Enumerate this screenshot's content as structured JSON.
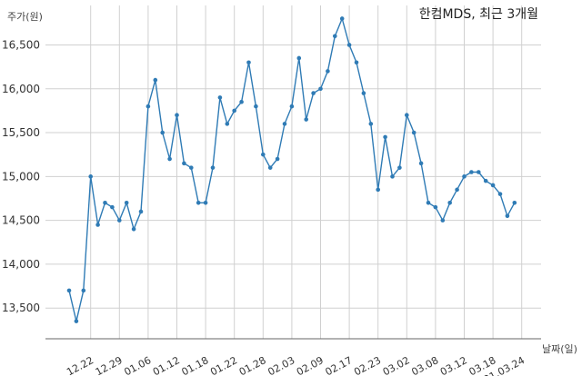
{
  "chart_data": {
    "type": "line",
    "title": "한컴MDS, 최근 3개월",
    "ylabel": "주가(원)",
    "xlabel": "날짜(일)",
    "ylim": [
      13150,
      16950
    ],
    "yticks": [
      13500,
      14000,
      14500,
      15000,
      15500,
      16000,
      16500
    ],
    "ytick_labels": [
      "13,500",
      "14,000",
      "14,500",
      "15,000",
      "15,500",
      "16,000",
      "16,500"
    ],
    "xtick_labels": [
      "12.22",
      "12.29",
      "01.06",
      "01.12",
      "01.18",
      "01.22",
      "01.28",
      "02.03",
      "02.09",
      "02.17",
      "02.23",
      "03.02",
      "03.08",
      "03.12",
      "03.18",
      "21.03.24"
    ],
    "xtick_index": [
      3,
      7,
      11,
      15,
      19,
      23,
      27,
      31,
      35,
      39,
      43,
      47,
      51,
      55,
      59,
      63
    ],
    "grid": true,
    "color": "#2f7bb5",
    "series": [
      {
        "values": [
          13700,
          13350,
          13700,
          15000,
          14450,
          14700,
          14650,
          14500,
          14700,
          14400,
          14600,
          15800,
          16100,
          15500,
          15200,
          15700,
          15150,
          15100,
          14700,
          14700,
          15100,
          15900,
          15600,
          15750,
          15850,
          16300,
          15800,
          15250,
          15100,
          15200,
          15600,
          15800,
          16350,
          15650,
          15950,
          16000,
          16200,
          16600,
          16800,
          16500,
          16300,
          15950,
          15600,
          14850,
          15450,
          15000,
          15100,
          15700,
          15500,
          15150,
          14700,
          14650,
          14500,
          14700,
          14850,
          15000,
          15050,
          15050,
          14950,
          14900,
          14800,
          14550,
          14700
        ]
      }
    ]
  }
}
